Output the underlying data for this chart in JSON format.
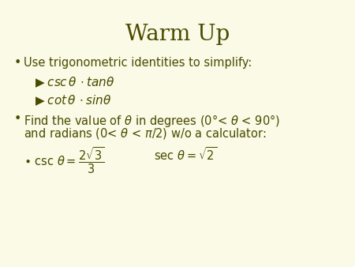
{
  "title": "Warm Up",
  "background_color": "#FAFAE6",
  "text_color": "#4A4A00",
  "title_fontsize": 20,
  "body_fontsize": 10.5,
  "math_fontsize": 11,
  "bullet1": "Use trigonometric identities to simplify:",
  "bullet2_part1": "Find the value of $\\theta$ in degrees (0°< $\\theta$ < 90°)",
  "bullet2_part2": "and radians (0< $\\theta$ < $\\pi$/2) w/o a calculator:"
}
